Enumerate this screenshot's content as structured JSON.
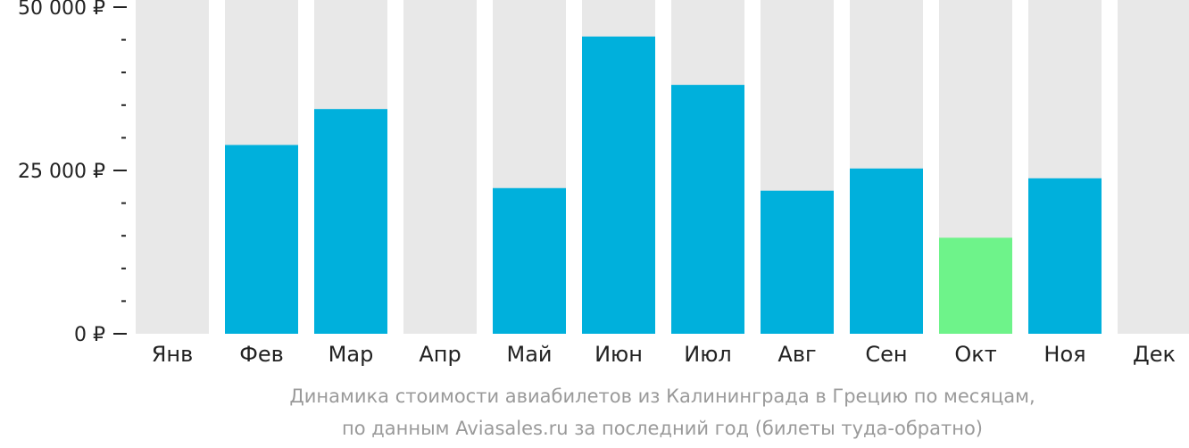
{
  "chart_data": {
    "type": "bar",
    "categories": [
      "Янв",
      "Фев",
      "Мар",
      "Апр",
      "Май",
      "Июн",
      "Июл",
      "Авг",
      "Сен",
      "Окт",
      "Ноя",
      "Дек"
    ],
    "values": [
      null,
      28900,
      34400,
      null,
      22300,
      45500,
      38100,
      21900,
      25300,
      14700,
      23800,
      null
    ],
    "ylim": [
      0,
      50000
    ],
    "yticks": [
      {
        "value": 0,
        "label": "0 ₽"
      },
      {
        "value": 25000,
        "label": "25 000 ₽"
      },
      {
        "value": 50000,
        "label": "50 000 ₽"
      }
    ],
    "minor_tick_step": 5000,
    "highlight_category": "Окт",
    "colors": {
      "bar": "#00b0dc",
      "highlight": "#6ef38a",
      "background_bar": "#e8e8e8",
      "axis": "#222222"
    },
    "caption_line1": "Динамика стоимости авиабилетов из Калининграда в Грецию по месяцам,",
    "caption_line2": "по данным Aviasales.ru за последний год (билеты туда-обратно)"
  }
}
